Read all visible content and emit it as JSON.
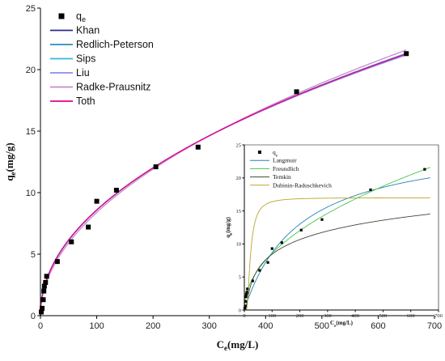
{
  "chart_data": [
    {
      "type": "scatter",
      "title": "",
      "xlabel": "C",
      "xlabel_sub": "e",
      "xlabel_unit": "(mg/L)",
      "ylabel": "q",
      "ylabel_sub": "e",
      "ylabel_unit": "(mg/g)",
      "xlim": [
        0,
        700
      ],
      "ylim": [
        0,
        25
      ],
      "xticks": [
        "0",
        "100",
        "200",
        "300",
        "400",
        "500",
        "600",
        "700"
      ],
      "yticks": [
        "0",
        "5",
        "10",
        "15",
        "20",
        "25"
      ],
      "grid": false,
      "legend_position": "top-left",
      "points_label": "q",
      "points_label_sub": "e",
      "points": [
        [
          1.5,
          0.3
        ],
        [
          3,
          0.6
        ],
        [
          5,
          1.3
        ],
        [
          6,
          2.0
        ],
        [
          7,
          2.4
        ],
        [
          9,
          2.7
        ],
        [
          11,
          3.2
        ],
        [
          30,
          4.4
        ],
        [
          55,
          6.0
        ],
        [
          85,
          7.2
        ],
        [
          100,
          9.3
        ],
        [
          135,
          10.2
        ],
        [
          205,
          12.1
        ],
        [
          280,
          13.7
        ],
        [
          455,
          18.2
        ],
        [
          650,
          21.3
        ]
      ],
      "series": [
        {
          "name": "Khan",
          "color": "#2a2a8c",
          "K": 0.92,
          "n": 0.485
        },
        {
          "name": "Redlich-Peterson",
          "color": "#2b8cbe",
          "K": 0.92,
          "n": 0.485
        },
        {
          "name": "Sips",
          "color": "#35b8dc",
          "K": 0.91,
          "n": 0.487
        },
        {
          "name": "Liu",
          "color": "#8c8cf0",
          "K": 0.94,
          "n": 0.481
        },
        {
          "name": "Radke-Prausnitz",
          "color": "#c98ac9",
          "K": 0.82,
          "n": 0.505
        },
        {
          "name": "Toth",
          "color": "#e6008c",
          "K": 0.92,
          "n": 0.485
        }
      ]
    },
    {
      "type": "scatter",
      "title": "",
      "xlabel": "C",
      "xlabel_sub": "e",
      "xlabel_unit": "(mg/L)",
      "ylabel": "q",
      "ylabel_sub": "e",
      "ylabel_unit": "(mg/g)",
      "xlim": [
        0,
        700
      ],
      "ylim": [
        0,
        25
      ],
      "xticks": [
        "0",
        "100",
        "200",
        "300",
        "400",
        "500",
        "600",
        "700"
      ],
      "yticks": [
        "0",
        "5",
        "10",
        "15",
        "20",
        "25"
      ],
      "grid": false,
      "legend_position": "top-left",
      "points_label": "q",
      "points_label_sub": "e",
      "points": [
        [
          1.5,
          0.3
        ],
        [
          3,
          0.6
        ],
        [
          5,
          1.3
        ],
        [
          6,
          2.0
        ],
        [
          7,
          2.4
        ],
        [
          9,
          2.7
        ],
        [
          11,
          3.2
        ],
        [
          30,
          4.4
        ],
        [
          55,
          6.0
        ],
        [
          85,
          7.2
        ],
        [
          100,
          9.3
        ],
        [
          135,
          10.2
        ],
        [
          205,
          12.1
        ],
        [
          280,
          13.7
        ],
        [
          455,
          18.2
        ],
        [
          650,
          21.3
        ]
      ],
      "series": [
        {
          "name": "Langmuir",
          "color": "#2c7fb8",
          "model": "langmuir",
          "qm": 26,
          "KL": 0.005
        },
        {
          "name": "Freundlich",
          "color": "#41c94a",
          "model": "freundlich",
          "K": 0.92,
          "n": 0.485
        },
        {
          "name": "Temkin",
          "color": "#3b4a34",
          "model": "temkin",
          "B": 3.2,
          "A": 0.14
        },
        {
          "name": "Dubinin-Raduschkevich",
          "color": "#bfa42a",
          "model": "dr",
          "qm": 17,
          "k": 6000
        }
      ]
    }
  ]
}
